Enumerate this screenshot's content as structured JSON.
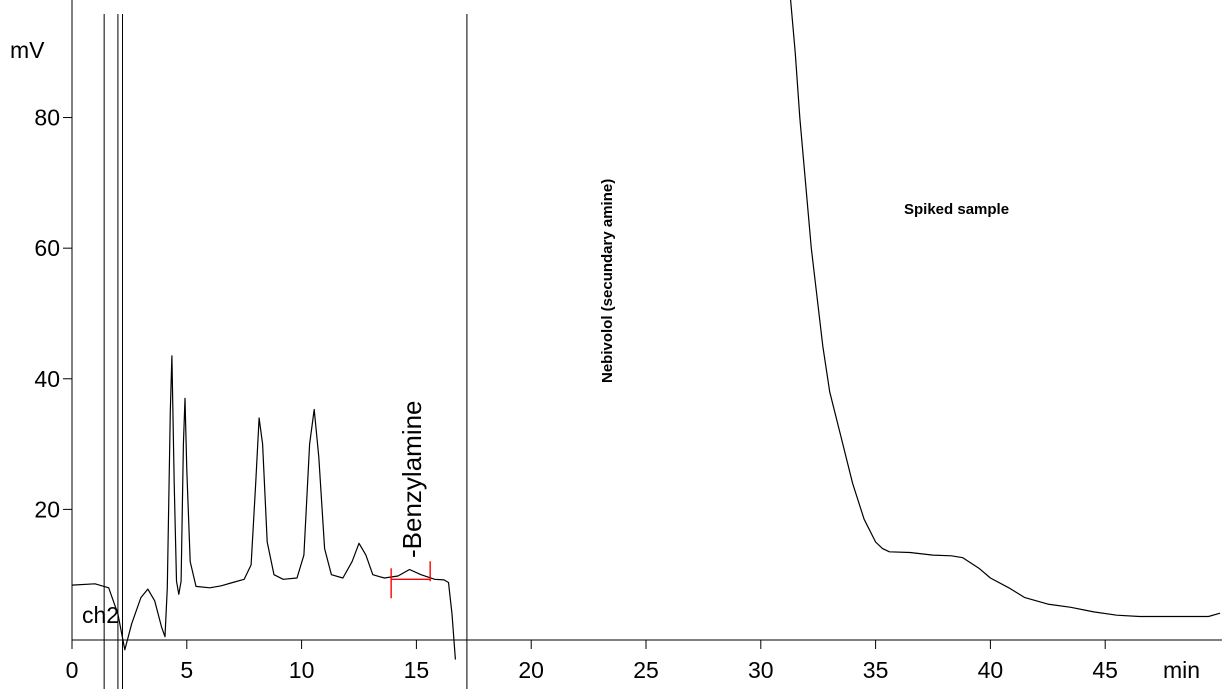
{
  "chart_data": {
    "type": "line",
    "title": "",
    "xlabel": "min",
    "ylabel": "mV",
    "xlim": [
      0,
      50
    ],
    "ylim": [
      0,
      98
    ],
    "x_ticks": [
      0,
      5,
      10,
      15,
      20,
      25,
      30,
      35,
      40,
      45
    ],
    "y_ticks": [
      20,
      40,
      60,
      80
    ],
    "channel_label": "ch2",
    "grid": false,
    "series": [
      {
        "color": "#000000",
        "points": [
          [
            0.0,
            8.4
          ],
          [
            1.0,
            8.6
          ],
          [
            1.6,
            8.0
          ],
          [
            2.0,
            4.0
          ],
          [
            2.3,
            -1.5
          ],
          [
            2.6,
            2.5
          ],
          [
            3.0,
            6.5
          ],
          [
            3.3,
            7.8
          ],
          [
            3.6,
            6.0
          ],
          [
            3.9,
            2.0
          ],
          [
            4.05,
            0.5
          ],
          [
            4.15,
            8.0
          ],
          [
            4.28,
            35.0
          ],
          [
            4.35,
            43.5
          ],
          [
            4.45,
            24.0
          ],
          [
            4.55,
            9.0
          ],
          [
            4.65,
            7.0
          ],
          [
            4.75,
            9.0
          ],
          [
            4.85,
            30.0
          ],
          [
            4.92,
            37.0
          ],
          [
            5.0,
            26.0
          ],
          [
            5.15,
            12.0
          ],
          [
            5.4,
            8.2
          ],
          [
            6.0,
            8.0
          ],
          [
            6.5,
            8.3
          ],
          [
            7.0,
            8.8
          ],
          [
            7.5,
            9.3
          ],
          [
            7.8,
            11.5
          ],
          [
            8.0,
            24.0
          ],
          [
            8.15,
            34.0
          ],
          [
            8.3,
            30.0
          ],
          [
            8.5,
            15.0
          ],
          [
            8.8,
            10.0
          ],
          [
            9.2,
            9.3
          ],
          [
            9.8,
            9.5
          ],
          [
            10.1,
            13.0
          ],
          [
            10.35,
            30.0
          ],
          [
            10.55,
            35.3
          ],
          [
            10.75,
            28.0
          ],
          [
            11.0,
            14.0
          ],
          [
            11.3,
            10.0
          ],
          [
            11.8,
            9.5
          ],
          [
            12.2,
            12.0
          ],
          [
            12.5,
            14.8
          ],
          [
            12.8,
            13.0
          ],
          [
            13.1,
            10.0
          ],
          [
            13.6,
            9.5
          ],
          [
            14.2,
            9.8
          ],
          [
            14.7,
            10.8
          ],
          [
            15.2,
            10.0
          ],
          [
            15.8,
            9.3
          ],
          [
            16.2,
            9.2
          ],
          [
            16.4,
            8.8
          ],
          [
            16.55,
            4.0
          ],
          [
            16.7,
            -3.0
          ]
        ]
      },
      {
        "color": "#000000",
        "points": [
          [
            31.3,
            98.0
          ],
          [
            31.5,
            90.0
          ],
          [
            31.7,
            80.0
          ],
          [
            32.0,
            68.0
          ],
          [
            32.2,
            60.0
          ],
          [
            32.4,
            54.0
          ],
          [
            32.7,
            45.0
          ],
          [
            33.0,
            38.0
          ],
          [
            33.5,
            31.0
          ],
          [
            34.0,
            24.0
          ],
          [
            34.5,
            18.5
          ],
          [
            35.0,
            15.0
          ],
          [
            35.3,
            14.0
          ],
          [
            35.6,
            13.5
          ],
          [
            36.5,
            13.4
          ],
          [
            37.5,
            13.0
          ],
          [
            38.3,
            12.9
          ],
          [
            38.8,
            12.6
          ],
          [
            39.5,
            11.0
          ],
          [
            40.0,
            9.5
          ],
          [
            40.8,
            8.0
          ],
          [
            41.5,
            6.5
          ],
          [
            42.5,
            5.5
          ],
          [
            43.5,
            5.0
          ],
          [
            44.5,
            4.3
          ],
          [
            45.5,
            3.8
          ],
          [
            46.5,
            3.6
          ],
          [
            48.0,
            3.6
          ],
          [
            49.5,
            3.6
          ],
          [
            50.0,
            4.1
          ]
        ]
      }
    ],
    "vertical_markers_x": [
      1.4,
      2.0,
      2.2,
      17.2
    ],
    "integration_baseline": {
      "x": [
        13.9,
        15.6
      ],
      "y": 9.3,
      "color": "#ff0000"
    },
    "annotations": {
      "peak_label": "-Benzylamine",
      "vertical_note": "Nebivolol (secundary amine)",
      "sample_note": "Spiked sample"
    }
  }
}
